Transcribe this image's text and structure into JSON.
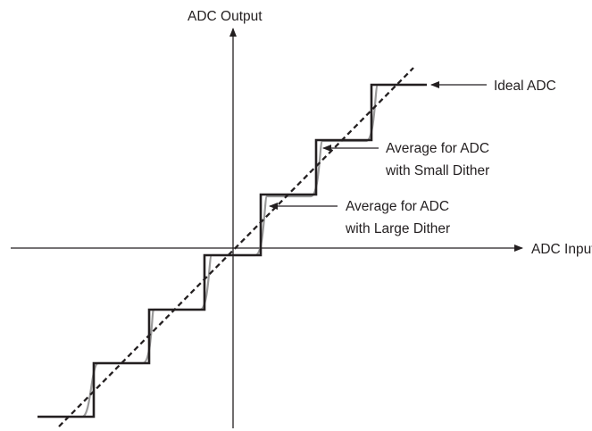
{
  "diagram": {
    "y_axis_label": "ADC Output",
    "x_axis_label": "ADC Input",
    "annotations": {
      "ideal": "Ideal ADC",
      "small_dither": [
        "Average for ADC",
        "with Small Dither"
      ],
      "large_dither": [
        "Average for ADC",
        "with Large Dither"
      ]
    },
    "colors": {
      "axes": "#231f20",
      "ideal_staircase": "#231f20",
      "small_dither_curve": "#9a9a9a",
      "large_dither_line": "#231f20"
    }
  }
}
